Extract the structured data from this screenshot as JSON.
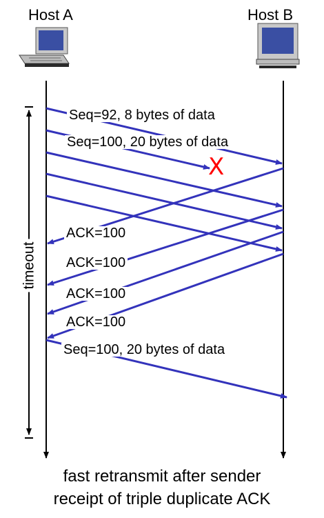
{
  "hosts": {
    "a_label": "Host A",
    "b_label": "Host B"
  },
  "messages": {
    "seq92": "Seq=92, 8 bytes of data",
    "seq100": "Seq=100, 20 bytes of data",
    "ack1": "ACK=100",
    "ack2": "ACK=100",
    "ack3": "ACK=100",
    "ack4": "ACK=100",
    "retransmit": "Seq=100, 20 bytes of data"
  },
  "loss_mark": "X",
  "timeout_label": "timeout",
  "caption": {
    "line1": "fast retransmit after sender",
    "line2": "receipt of triple duplicate ACK"
  },
  "colors": {
    "arrow": "#3333bb",
    "loss": "#ff0000",
    "computer_body": "#c8c8c8",
    "screen": "#3a4fa3"
  }
}
